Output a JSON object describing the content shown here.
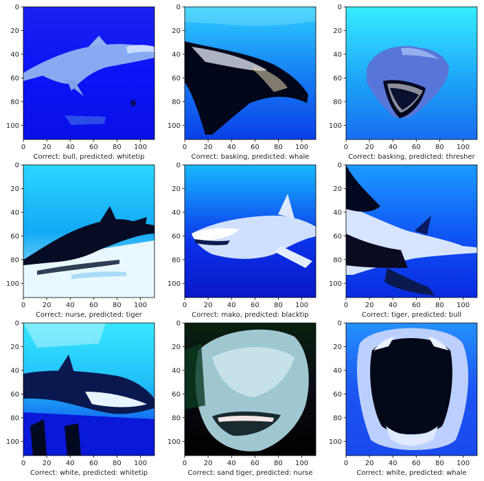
{
  "figure": {
    "panels": [
      {
        "correct": "bull",
        "predicted": "whitetip",
        "caption": "Correct: bull, predicted: whitetip"
      },
      {
        "correct": "basking",
        "predicted": "whale",
        "caption": "Correct: basking, predicted: whale"
      },
      {
        "correct": "basking",
        "predicted": "thresher",
        "caption": "Correct: basking, predicted: thresher"
      },
      {
        "correct": "nurse",
        "predicted": "tiger",
        "caption": "Correct: nurse, predicted: tiger"
      },
      {
        "correct": "mako",
        "predicted": "blacktip",
        "caption": "Correct: mako, predicted: blacktip"
      },
      {
        "correct": "tiger",
        "predicted": "bull",
        "caption": "Correct: tiger, predicted: bull"
      },
      {
        "correct": "white",
        "predicted": "whitetip",
        "caption": "Correct: white, predicted: whitetip"
      },
      {
        "correct": "sand tiger",
        "predicted": "nurse",
        "caption": "Correct: sand tiger, predicted: nurse"
      },
      {
        "correct": "white",
        "predicted": "whale",
        "caption": "Correct: white, predicted: whale"
      }
    ]
  },
  "chart_data": {
    "type": "image-grid",
    "rows": 3,
    "cols": 3,
    "xlim": [
      0,
      112
    ],
    "ylim": [
      112,
      0
    ],
    "x_ticks": [
      0,
      20,
      40,
      60,
      80,
      100
    ],
    "y_ticks": [
      0,
      20,
      40,
      60,
      80,
      100
    ],
    "x_tick_labels": [
      "0",
      "20",
      "40",
      "60",
      "80",
      "100"
    ],
    "y_tick_labels": [
      "0",
      "20",
      "40",
      "60",
      "80",
      "100"
    ],
    "xlabels": [
      "Correct: bull, predicted: whitetip",
      "Correct: basking, predicted: whale",
      "Correct: basking, predicted: thresher",
      "Correct: nurse, predicted: tiger",
      "Correct: mako, predicted: blacktip",
      "Correct: tiger, predicted: bull",
      "Correct: white, predicted: whitetip",
      "Correct: sand tiger, predicted: nurse",
      "Correct: white, predicted: whale"
    ],
    "grid": false
  }
}
